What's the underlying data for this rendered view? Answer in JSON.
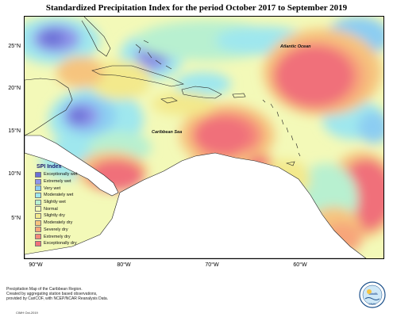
{
  "title": "Standardized Precipitation Index for the period October 2017 to September 2019",
  "axes": {
    "y_ticks": [
      "25°N",
      "20°N",
      "15°N",
      "10°N",
      "5°N"
    ],
    "x_ticks": [
      "90°W",
      "80°W",
      "70°W",
      "60°W"
    ]
  },
  "map_labels": {
    "atlantic": "Atlantic Ocean",
    "caribbean": "Caribbean Sea"
  },
  "legend": {
    "title": "SPI Index",
    "items": [
      {
        "label": "Exceptionally wet",
        "color": "#6b6fd6"
      },
      {
        "label": "Extremely wet",
        "color": "#8f95ea"
      },
      {
        "label": "Very wet",
        "color": "#8ccdf2"
      },
      {
        "label": "Moderately wet",
        "color": "#9fe7ee"
      },
      {
        "label": "Slightly wet",
        "color": "#b8f0d0"
      },
      {
        "label": "Normal",
        "color": "#f3f9b8"
      },
      {
        "label": "Slightly dry",
        "color": "#f3e98c"
      },
      {
        "label": "Moderately dry",
        "color": "#f6c47e"
      },
      {
        "label": "Severely dry",
        "color": "#f7a57a"
      },
      {
        "label": "Extremely dry",
        "color": "#f58a7a"
      },
      {
        "label": "Exceptionally dry",
        "color": "#f0707a"
      }
    ]
  },
  "note": {
    "line1": "Precipitation Map of the Caribbean Region.",
    "line2": "Created by aggregating station based observations,",
    "line3": "provided by CariCOF, with NCEP/NCAR Reanalysis Data."
  },
  "credit": "CIMH Oct-2019",
  "logo_text": "CIMH"
}
